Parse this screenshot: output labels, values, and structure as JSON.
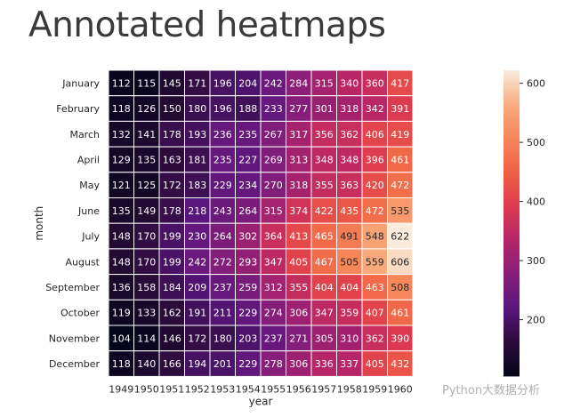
{
  "page_title": "Annotated heatmaps",
  "chart_data": {
    "type": "heatmap",
    "title": "Annotated heatmaps",
    "xlabel": "year",
    "ylabel": "month",
    "x": [
      "1949",
      "1950",
      "1951",
      "1952",
      "1953",
      "1954",
      "1955",
      "1956",
      "1957",
      "1958",
      "1959",
      "1960"
    ],
    "y": [
      "January",
      "February",
      "March",
      "April",
      "May",
      "June",
      "July",
      "August",
      "September",
      "October",
      "November",
      "December"
    ],
    "values": [
      [
        112,
        115,
        145,
        171,
        196,
        204,
        242,
        284,
        315,
        340,
        360,
        417
      ],
      [
        118,
        126,
        150,
        180,
        196,
        188,
        233,
        277,
        301,
        318,
        342,
        391
      ],
      [
        132,
        141,
        178,
        193,
        236,
        235,
        267,
        317,
        356,
        362,
        406,
        419
      ],
      [
        129,
        135,
        163,
        181,
        235,
        227,
        269,
        313,
        348,
        348,
        396,
        461
      ],
      [
        121,
        125,
        172,
        183,
        229,
        234,
        270,
        318,
        355,
        363,
        420,
        472
      ],
      [
        135,
        149,
        178,
        218,
        243,
        264,
        315,
        374,
        422,
        435,
        472,
        535
      ],
      [
        148,
        170,
        199,
        230,
        264,
        302,
        364,
        413,
        465,
        491,
        548,
        622
      ],
      [
        148,
        170,
        199,
        242,
        272,
        293,
        347,
        405,
        467,
        505,
        559,
        606
      ],
      [
        136,
        158,
        184,
        209,
        237,
        259,
        312,
        355,
        404,
        404,
        463,
        508
      ],
      [
        119,
        133,
        162,
        191,
        211,
        229,
        274,
        306,
        347,
        359,
        407,
        461
      ],
      [
        104,
        114,
        146,
        172,
        180,
        203,
        237,
        271,
        305,
        310,
        362,
        390
      ],
      [
        118,
        140,
        166,
        194,
        201,
        229,
        278,
        306,
        336,
        337,
        405,
        432
      ]
    ],
    "colorbar": {
      "min": 104,
      "max": 622,
      "ticks": [
        200,
        300,
        400,
        500,
        600
      ]
    },
    "colormap": [
      "#03051a",
      "#2b0b39",
      "#5a167e",
      "#861e79",
      "#b42468",
      "#dd3a4f",
      "#f06043",
      "#f6865a",
      "#f8ad80",
      "#faebdd"
    ],
    "annotations": true,
    "line_color": "#ffffff"
  },
  "watermark_text": "Python大数据分析"
}
